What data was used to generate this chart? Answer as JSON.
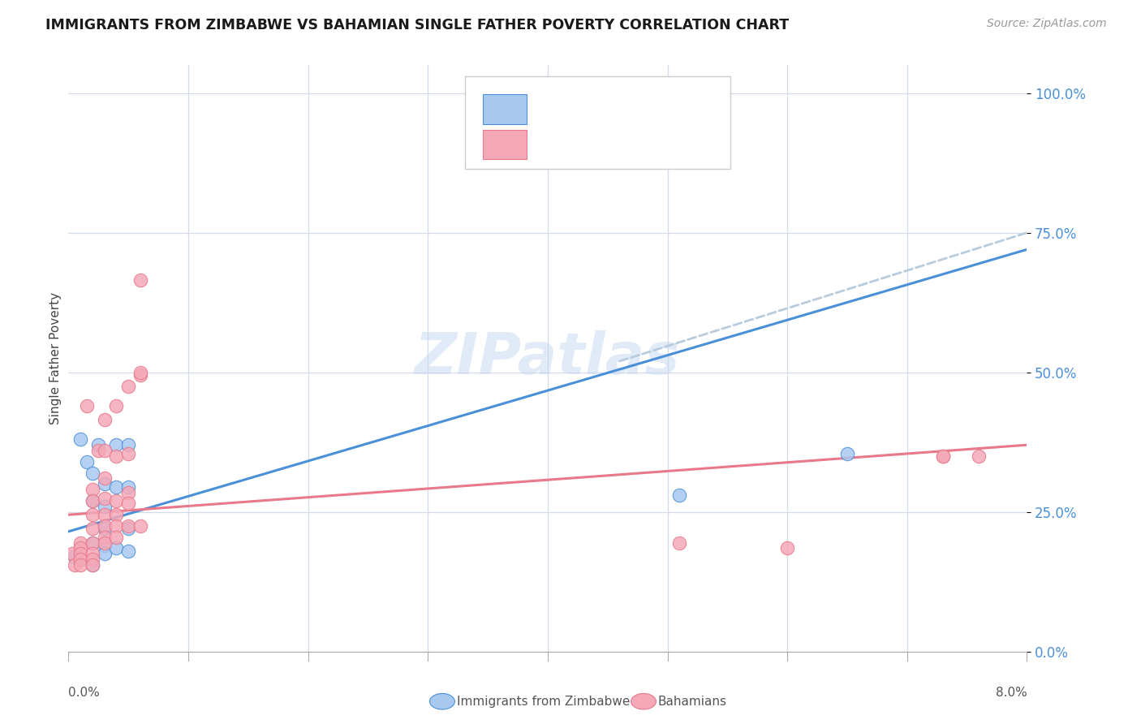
{
  "title": "IMMIGRANTS FROM ZIMBABWE VS BAHAMIAN SINGLE FATHER POVERTY CORRELATION CHART",
  "source": "Source: ZipAtlas.com",
  "ylabel": "Single Father Poverty",
  "ytick_labels": [
    "0.0%",
    "25.0%",
    "50.0%",
    "75.0%",
    "100.0%"
  ],
  "ytick_values": [
    0.0,
    0.25,
    0.5,
    0.75,
    1.0
  ],
  "xlim": [
    0.0,
    0.08
  ],
  "ylim": [
    0.0,
    1.05
  ],
  "color_blue": "#a8c8f0",
  "color_pink": "#f4a8b8",
  "color_blue_line": "#4a90d9",
  "color_pink_line": "#e8788a",
  "color_dashed": "#b8ccdd",
  "watermark": "ZIPatlas",
  "label1": "Immigrants from Zimbabwe",
  "label2": "Bahamians",
  "blue_line_x": [
    0.0,
    0.08
  ],
  "blue_line_y": [
    0.215,
    0.72
  ],
  "pink_line_x": [
    0.0,
    0.08
  ],
  "pink_line_y": [
    0.245,
    0.37
  ],
  "dashed_line_x": [
    0.046,
    0.08
  ],
  "dashed_line_y": [
    0.52,
    0.75
  ],
  "blue_points_x": [
    0.0005,
    0.001,
    0.001,
    0.0015,
    0.002,
    0.002,
    0.002,
    0.002,
    0.0025,
    0.003,
    0.003,
    0.003,
    0.003,
    0.003,
    0.004,
    0.004,
    0.004,
    0.005,
    0.005,
    0.005,
    0.005,
    0.051,
    0.065
  ],
  "blue_points_y": [
    0.17,
    0.38,
    0.165,
    0.34,
    0.32,
    0.27,
    0.195,
    0.155,
    0.37,
    0.3,
    0.26,
    0.22,
    0.19,
    0.175,
    0.37,
    0.295,
    0.185,
    0.37,
    0.295,
    0.22,
    0.18,
    0.28,
    0.355
  ],
  "pink_points_x": [
    0.0003,
    0.0005,
    0.001,
    0.001,
    0.001,
    0.001,
    0.001,
    0.0015,
    0.002,
    0.002,
    0.002,
    0.002,
    0.002,
    0.002,
    0.002,
    0.002,
    0.0025,
    0.003,
    0.003,
    0.003,
    0.003,
    0.003,
    0.003,
    0.003,
    0.003,
    0.004,
    0.004,
    0.004,
    0.004,
    0.004,
    0.004,
    0.005,
    0.005,
    0.005,
    0.005,
    0.005,
    0.006,
    0.006,
    0.006,
    0.006,
    0.051,
    0.06,
    0.073,
    0.073,
    0.076
  ],
  "pink_points_y": [
    0.175,
    0.155,
    0.195,
    0.185,
    0.175,
    0.165,
    0.155,
    0.44,
    0.29,
    0.27,
    0.245,
    0.22,
    0.195,
    0.175,
    0.165,
    0.155,
    0.36,
    0.415,
    0.36,
    0.31,
    0.275,
    0.245,
    0.225,
    0.205,
    0.195,
    0.44,
    0.35,
    0.27,
    0.245,
    0.225,
    0.205,
    0.475,
    0.355,
    0.285,
    0.265,
    0.225,
    0.495,
    0.665,
    0.5,
    0.225,
    0.195,
    0.185,
    0.35,
    0.35,
    0.35
  ]
}
